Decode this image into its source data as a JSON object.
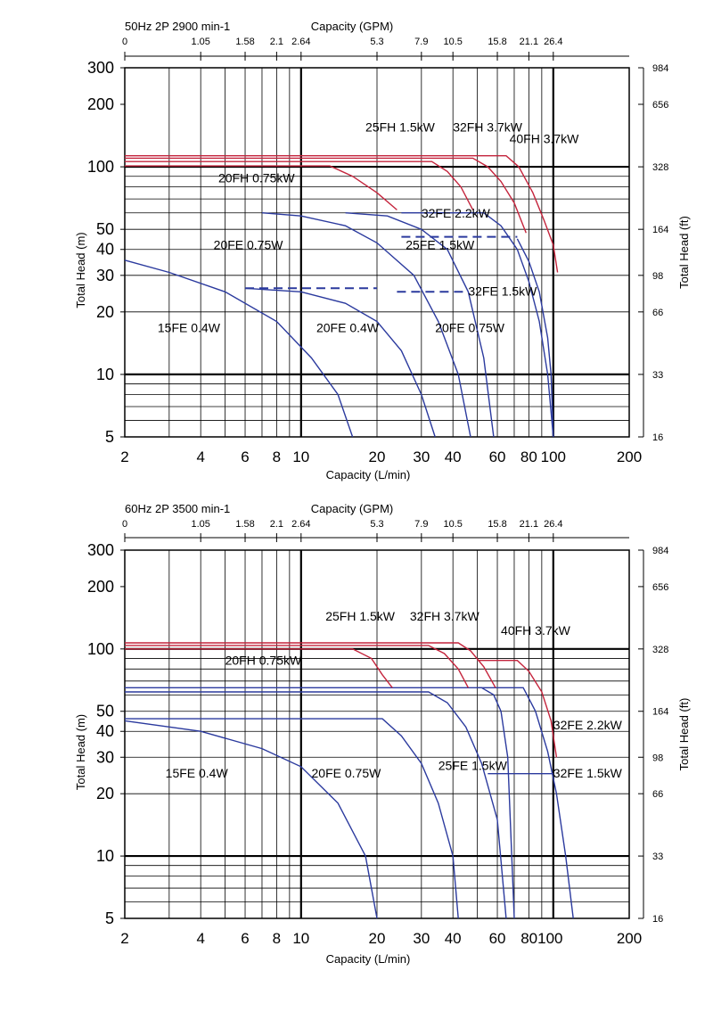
{
  "chart_data": [
    {
      "type": "line",
      "title": "50Hz 2P 2900 min-1",
      "xlabel": "Capacity (L/min)",
      "ylabel": "Total Head (m)",
      "x2label": "Capacity (GPM)",
      "y2label": "Total Head (ft)",
      "x_scale": "log",
      "y_scale": "log",
      "xlim": [
        2,
        200
      ],
      "ylim": [
        5,
        300
      ],
      "x_ticks": [
        "2",
        "4",
        "6",
        "8",
        "10",
        "20",
        "30",
        "40",
        "60",
        "80",
        "100",
        "200"
      ],
      "y_ticks": [
        "5",
        "10",
        "20",
        "30",
        "40",
        "50",
        "100",
        "200",
        "300"
      ],
      "gpm_ticks": [
        "0",
        "1.05",
        "1.58",
        "2.1",
        "2.64",
        "5.3",
        "7.9",
        "10.5",
        "15.8",
        "21.1",
        "26.4"
      ],
      "ft_ticks": [
        "984",
        "656",
        "328",
        "164",
        "98",
        "66",
        "33",
        "16"
      ],
      "grid": true,
      "series": [
        {
          "label": "15FE 0.4W",
          "color": "#2b3a9e",
          "points": [
            [
              2,
              35.5
            ],
            [
              3,
              31
            ],
            [
              5,
              25
            ],
            [
              8,
              18
            ],
            [
              11,
              12
            ],
            [
              14,
              8
            ],
            [
              16,
              5
            ]
          ]
        },
        {
          "label": "20FE 0.4W",
          "color": "#2b3a9e",
          "points": [
            [
              6,
              26
            ],
            [
              10,
              25
            ],
            [
              15,
              22
            ],
            [
              20,
              18
            ],
            [
              25,
              13
            ],
            [
              30,
              8
            ],
            [
              34,
              5
            ]
          ]
        },
        {
          "label": "20FE 0.75W",
          "color": "#2b3a9e",
          "points": [
            [
              7,
              60
            ],
            [
              10,
              58
            ],
            [
              15,
              52
            ],
            [
              20,
              43
            ],
            [
              28,
              30
            ],
            [
              35,
              18
            ],
            [
              42,
              10
            ],
            [
              47,
              5
            ]
          ]
        },
        {
          "label": "25FE 1.5kW",
          "color": "#2b3a9e",
          "points": [
            [
              15,
              60
            ],
            [
              22,
              58
            ],
            [
              30,
              50
            ],
            [
              38,
              40
            ],
            [
              46,
              25
            ],
            [
              53,
              12
            ],
            [
              58,
              5
            ]
          ]
        },
        {
          "label": "32FE 2.2kW",
          "color": "#2b3a9e",
          "points": [
            [
              25,
              60
            ],
            [
              53,
              60
            ],
            [
              62,
              52
            ],
            [
              72,
              40
            ],
            [
              80,
              28
            ],
            [
              88,
              18
            ],
            [
              95,
              10
            ],
            [
              100,
              5
            ]
          ]
        },
        {
          "label": "32FE 1.5kW",
          "color": "#2b3a9e",
          "points": [
            [
              72,
              45
            ],
            [
              80,
              35
            ],
            [
              88,
              25
            ],
            [
              95,
              15
            ],
            [
              98,
              10
            ],
            [
              100,
              5
            ]
          ]
        },
        {
          "label": "20FH 0.75kW",
          "color": "#c4243c",
          "points": [
            [
              2,
              101
            ],
            [
              13,
              101
            ],
            [
              16,
              90
            ],
            [
              20,
              75
            ],
            [
              24,
              62
            ]
          ]
        },
        {
          "label": "25FH 1.5kW",
          "color": "#c4243c",
          "points": [
            [
              2,
              106
            ],
            [
              33,
              106
            ],
            [
              38,
              95
            ],
            [
              43,
              80
            ],
            [
              48,
              62
            ]
          ]
        },
        {
          "label": "32FH 3.7kW",
          "color": "#c4243c",
          "points": [
            [
              2,
              110
            ],
            [
              48,
              110
            ],
            [
              55,
              100
            ],
            [
              62,
              85
            ],
            [
              70,
              67
            ],
            [
              78,
              48
            ]
          ]
        },
        {
          "label": "40FH 3.7kW",
          "color": "#c4243c",
          "points": [
            [
              2,
              113
            ],
            [
              65,
              113
            ],
            [
              73,
              100
            ],
            [
              83,
              75
            ],
            [
              92,
              55
            ],
            [
              100,
              42
            ],
            [
              104,
              31
            ]
          ]
        }
      ],
      "dashed_lines": [
        {
          "color": "#2b3a9e",
          "points": [
            [
              6,
              26
            ],
            [
              20,
              26
            ]
          ]
        },
        {
          "color": "#2b3a9e",
          "points": [
            [
              24,
              25
            ],
            [
              45,
              25
            ]
          ]
        },
        {
          "color": "#2b3a9e",
          "points": [
            [
              25,
              46
            ],
            [
              72,
              46
            ]
          ]
        }
      ],
      "annotations": [
        {
          "text": "25FH 1.5kW",
          "at": [
            18,
            148
          ]
        },
        {
          "text": "32FH 3.7kW",
          "at": [
            40,
            148
          ]
        },
        {
          "text": "40FH 3.7kW",
          "at": [
            67,
            130
          ]
        },
        {
          "text": "20FH 0.75kW",
          "at": [
            4.7,
            84
          ]
        },
        {
          "text": "32FE 2.2kW",
          "at": [
            30,
            57
          ]
        },
        {
          "text": "25FE 1.5kW",
          "at": [
            26,
            40
          ]
        },
        {
          "text": "20FE 0.75W",
          "at": [
            4.5,
            40
          ]
        },
        {
          "text": "32FE 1.5kW",
          "at": [
            46,
            24
          ]
        },
        {
          "text": "15FE 0.4W",
          "at": [
            2.7,
            16
          ]
        },
        {
          "text": "20FE 0.4W",
          "at": [
            11.5,
            16
          ]
        },
        {
          "text": "20FE 0.75W",
          "at": [
            34,
            16
          ]
        }
      ]
    },
    {
      "type": "line",
      "title": "60Hz 2P 3500 min-1",
      "xlabel": "Capacity (L/min)",
      "ylabel": "Total Head (m)",
      "x2label": "Capacity (GPM)",
      "y2label": "Total Head (ft)",
      "x_scale": "log",
      "y_scale": "log",
      "xlim": [
        2,
        200
      ],
      "ylim": [
        5,
        300
      ],
      "x_ticks": [
        "2",
        "4",
        "6",
        "8",
        "10",
        "20",
        "30",
        "40",
        "60",
        "80100",
        "200"
      ],
      "y_ticks": [
        "5",
        "10",
        "20",
        "30",
        "40",
        "50",
        "100",
        "200",
        "300"
      ],
      "gpm_ticks": [
        "0",
        "1.05",
        "1.58",
        "2.1",
        "2.64",
        "5.3",
        "7.9",
        "10.5",
        "15.8",
        "21.1",
        "26.4"
      ],
      "ft_ticks": [
        "984",
        "656",
        "328",
        "164",
        "98",
        "66",
        "33",
        "16"
      ],
      "grid": true,
      "series": [
        {
          "label": "15FE 0.4W",
          "color": "#2b3a9e",
          "points": [
            [
              2,
              45
            ],
            [
              4,
              40
            ],
            [
              7,
              33
            ],
            [
              10,
              27
            ],
            [
              14,
              18
            ],
            [
              18,
              10
            ],
            [
              20,
              5
            ]
          ]
        },
        {
          "label": "20FE 0.75W",
          "color": "#2b3a9e",
          "points": [
            [
              2,
              46
            ],
            [
              21,
              46
            ],
            [
              25,
              38
            ],
            [
              30,
              28
            ],
            [
              35,
              18
            ],
            [
              40,
              10
            ],
            [
              42,
              5
            ]
          ]
        },
        {
          "label": "25FE 1.5kW",
          "color": "#2b3a9e",
          "points": [
            [
              2,
              62
            ],
            [
              32,
              62
            ],
            [
              38,
              55
            ],
            [
              45,
              42
            ],
            [
              52,
              28
            ],
            [
              60,
              15
            ],
            [
              65,
              5
            ]
          ]
        },
        {
          "label": "32FE 2.2kW",
          "color": "#2b3a9e",
          "points": [
            [
              2,
              65
            ],
            [
              52,
              65
            ],
            [
              58,
              60
            ],
            [
              62,
              50
            ],
            [
              66,
              30
            ],
            [
              70,
              5
            ]
          ]
        },
        {
          "label": "32FE 1.5kW",
          "color": "#2b3a9e",
          "points": [
            [
              50,
              65
            ],
            [
              76,
              65
            ],
            [
              85,
              50
            ],
            [
              95,
              32
            ],
            [
              103,
              20
            ],
            [
              112,
              10
            ],
            [
              120,
              5
            ]
          ]
        },
        {
          "label": "25FE 1.5kW line",
          "color": "#2b3a9e",
          "points": [
            [
              55,
              25
            ],
            [
              100,
              25
            ]
          ]
        },
        {
          "label": "20FH 0.75kW",
          "color": "#c4243c",
          "points": [
            [
              2,
              100
            ],
            [
              16,
              100
            ],
            [
              19,
              90
            ],
            [
              21,
              75
            ],
            [
              23,
              65
            ]
          ]
        },
        {
          "label": "25FH 1.5kW",
          "color": "#c4243c",
          "points": [
            [
              2,
              104
            ],
            [
              32,
              104
            ],
            [
              37,
              95
            ],
            [
              42,
              80
            ],
            [
              46,
              65
            ]
          ]
        },
        {
          "label": "32FH 3.7kW",
          "color": "#c4243c",
          "points": [
            [
              2,
              107
            ],
            [
              42,
              107
            ],
            [
              47,
              98
            ],
            [
              53,
              82
            ],
            [
              59,
              65
            ]
          ]
        },
        {
          "label": "40FH 3.7kW",
          "color": "#c4243c",
          "points": [
            [
              50,
              88
            ],
            [
              72,
              88
            ],
            [
              80,
              78
            ],
            [
              90,
              62
            ],
            [
              98,
              45
            ],
            [
              103,
              30
            ]
          ]
        }
      ],
      "dashed_lines": [],
      "annotations": [
        {
          "text": "25FH 1.5kW",
          "at": [
            12.5,
            137
          ]
        },
        {
          "text": "32FH 3.7kW",
          "at": [
            27,
            137
          ]
        },
        {
          "text": "40FH 3.7kW",
          "at": [
            62,
            117
          ]
        },
        {
          "text": "20FH 0.75kW",
          "at": [
            5,
            84
          ]
        },
        {
          "text": "32FE 2.2kW",
          "at": [
            100,
            41
          ]
        },
        {
          "text": "25FE 1.5kW",
          "at": [
            35,
            26
          ]
        },
        {
          "text": "20FE 0.75W",
          "at": [
            11,
            24
          ]
        },
        {
          "text": "32FE 1.5kW",
          "at": [
            100,
            24
          ]
        },
        {
          "text": "15FE 0.4W",
          "at": [
            2.9,
            24
          ]
        }
      ]
    }
  ]
}
